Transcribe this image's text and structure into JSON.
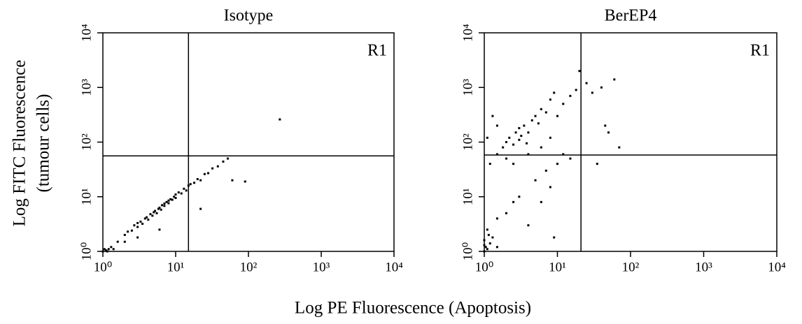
{
  "figure": {
    "xlabel": "Log PE Fluorescence (Apoptosis)",
    "ylabel": [
      "Log FITC Fluorescence",
      "(tumour cells)"
    ]
  },
  "chart_data": [
    {
      "type": "scatter",
      "title": "Isotype",
      "region_label": "R1",
      "color": "#000000",
      "xscale": "log",
      "yscale": "log",
      "xlim": [
        1,
        10000
      ],
      "ylim": [
        1,
        10000
      ],
      "xticks": [
        {
          "value": 1,
          "label": "10⁰"
        },
        {
          "value": 10,
          "label": "10¹"
        },
        {
          "value": 100,
          "label": "10²"
        },
        {
          "value": 1000,
          "label": "10³"
        },
        {
          "value": 10000,
          "label": "10⁴"
        }
      ],
      "yticks": [
        {
          "value": 1,
          "label": "10⁰"
        },
        {
          "value": 10,
          "label": "10¹"
        },
        {
          "value": 100,
          "label": "10²"
        },
        {
          "value": 1000,
          "label": "10³"
        },
        {
          "value": 10000,
          "label": "10⁴"
        }
      ],
      "gate": {
        "x": 15,
        "y": 56
      },
      "x": [
        1,
        1.1,
        1.2,
        1.3,
        1.15,
        1.05,
        1.4,
        1.6,
        2,
        2.2,
        2.5,
        2.7,
        3,
        3,
        3.3,
        3.5,
        3.8,
        4,
        4.2,
        4.5,
        4.8,
        5,
        5.2,
        5.5,
        5.8,
        6,
        6.3,
        6.5,
        7,
        7,
        7.5,
        8,
        8,
        8.5,
        9,
        9.5,
        10,
        10,
        11,
        12,
        13,
        14,
        15,
        16,
        18,
        20,
        22,
        25,
        28,
        32,
        38,
        45,
        52,
        22,
        90,
        60,
        270,
        3,
        6,
        2
      ],
      "values": [
        1,
        1.05,
        1.1,
        1.2,
        1,
        1.1,
        1.1,
        1.5,
        2,
        2.3,
        2.4,
        3,
        2.8,
        3.3,
        3.5,
        3.2,
        4,
        4.2,
        3.8,
        4.8,
        4.5,
        5.2,
        5.5,
        5,
        6,
        6.3,
        5.8,
        7,
        6.8,
        7.5,
        8,
        7.6,
        8.5,
        9,
        8.8,
        10,
        9.5,
        11,
        12,
        11.5,
        14,
        13,
        16,
        17,
        18,
        21,
        20,
        26,
        27,
        33,
        36,
        44,
        50,
        6,
        19,
        20,
        260,
        1.8,
        2.5,
        1.5
      ]
    },
    {
      "type": "scatter",
      "title": "BerEP4",
      "region_label": "R1",
      "color": "#000000",
      "xscale": "log",
      "yscale": "log",
      "xlim": [
        1,
        10000
      ],
      "ylim": [
        1,
        10000
      ],
      "xticks": [
        {
          "value": 1,
          "label": "10⁰"
        },
        {
          "value": 10,
          "label": "10¹"
        },
        {
          "value": 100,
          "label": "10²"
        },
        {
          "value": 1000,
          "label": "10³"
        },
        {
          "value": 10000,
          "label": "10⁴"
        }
      ],
      "yticks": [
        {
          "value": 1,
          "label": "10⁰"
        },
        {
          "value": 10,
          "label": "10¹"
        },
        {
          "value": 100,
          "label": "10²"
        },
        {
          "value": 1000,
          "label": "10³"
        },
        {
          "value": 10000,
          "label": "10⁴"
        }
      ],
      "gate": {
        "x": 21,
        "y": 58
      },
      "x": [
        1,
        1.05,
        1.1,
        1.2,
        1,
        1.15,
        1.3,
        1,
        1.1,
        1.5,
        1.5,
        1.8,
        2,
        2.2,
        2.5,
        2.7,
        3,
        3,
        3.2,
        3.5,
        3.8,
        4,
        4.5,
        5,
        5.5,
        6,
        7,
        8,
        9,
        10,
        12,
        15,
        18,
        20,
        25,
        30,
        40,
        60,
        45,
        50,
        70,
        35,
        1.2,
        1.5,
        1.3,
        1.1,
        2,
        2.5,
        4,
        6,
        8,
        12,
        3,
        5,
        8,
        10,
        15,
        2,
        4,
        6,
        9,
        1.5,
        2.5,
        7
      ],
      "values": [
        1,
        1.2,
        1.1,
        1.4,
        1.6,
        2,
        1.8,
        1.3,
        2.5,
        1.2,
        60,
        80,
        100,
        120,
        90,
        150,
        110,
        180,
        130,
        200,
        95,
        150,
        250,
        300,
        220,
        400,
        350,
        600,
        800,
        300,
        500,
        700,
        900,
        2000,
        1200,
        800,
        1000,
        1400,
        200,
        150,
        80,
        40,
        40,
        200,
        300,
        120,
        50,
        40,
        60,
        80,
        120,
        60,
        10,
        20,
        15,
        40,
        50,
        5,
        3,
        8,
        1.8,
        4,
        8,
        30
      ]
    }
  ]
}
